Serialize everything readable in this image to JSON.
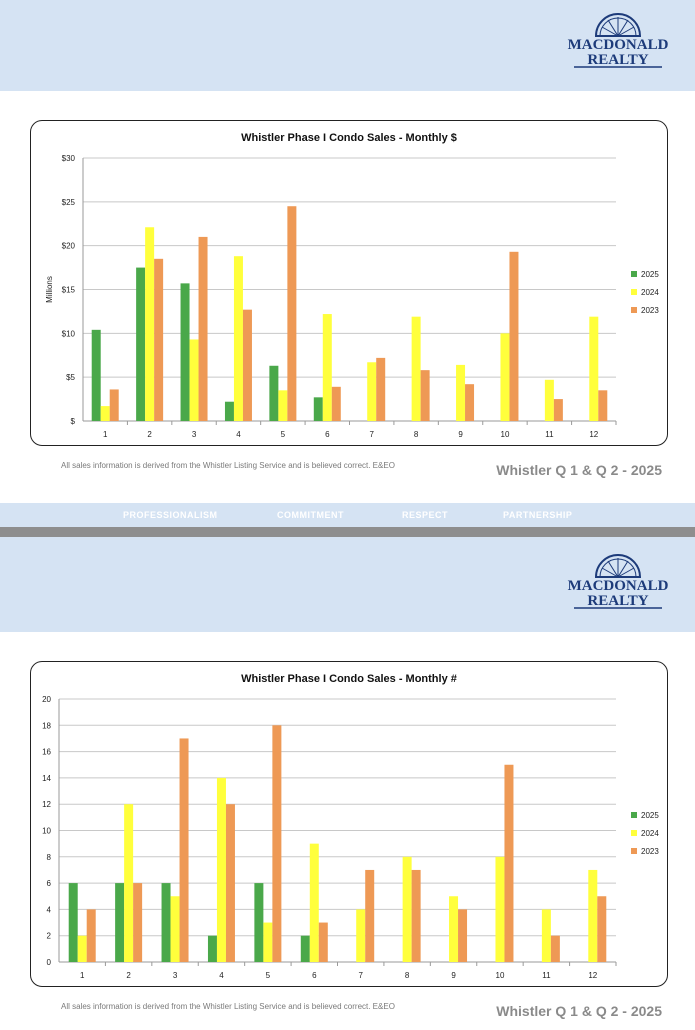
{
  "brand": {
    "line1": "MACDONALD",
    "line2": "REALTY",
    "color": "#1d3b7a"
  },
  "values": [
    "PROFESSIONALISM",
    "COMMITMENT",
    "RESPECT",
    "PARTNERSHIP"
  ],
  "footer": {
    "disclaimer": "All sales information is derived from the Whistler Listing Service and is believed correct. E&EO",
    "period": "Whistler Q 1 & Q 2 - 2025"
  },
  "colors": {
    "2025": "#4aa84a",
    "2024": "#ffff3c",
    "2023": "#ee9955",
    "band": "#d5e3f3"
  },
  "chart_data": [
    {
      "type": "bar",
      "title": "Whistler Phase I Condo Sales - Monthly $",
      "xlabel": "",
      "ylabel": "Millions",
      "ylim": [
        0,
        30
      ],
      "yticks": [
        0,
        5,
        10,
        15,
        20,
        25,
        30
      ],
      "ytick_labels": [
        "$",
        "$5",
        "$10",
        "$15",
        "$20",
        "$25",
        "$30"
      ],
      "categories": [
        "1",
        "2",
        "3",
        "4",
        "5",
        "6",
        "7",
        "8",
        "9",
        "10",
        "11",
        "12"
      ],
      "legend_position": "right",
      "grid": true,
      "series": [
        {
          "name": "2025",
          "color": "#4aa84a",
          "values": [
            10.4,
            17.5,
            15.7,
            2.2,
            6.3,
            2.7,
            null,
            null,
            null,
            null,
            null,
            null
          ]
        },
        {
          "name": "2024",
          "color": "#ffff3c",
          "values": [
            1.7,
            22.1,
            9.3,
            18.8,
            3.5,
            12.2,
            6.7,
            11.9,
            6.4,
            10.0,
            4.7,
            11.9
          ]
        },
        {
          "name": "2023",
          "color": "#ee9955",
          "values": [
            3.6,
            18.5,
            21.0,
            12.7,
            24.5,
            3.9,
            7.2,
            5.8,
            4.2,
            19.3,
            2.5,
            3.5
          ]
        }
      ]
    },
    {
      "type": "bar",
      "title": "Whistler Phase I Condo Sales - Monthly #",
      "xlabel": "",
      "ylabel": "",
      "ylim": [
        0,
        20
      ],
      "yticks": [
        0,
        2,
        4,
        6,
        8,
        10,
        12,
        14,
        16,
        18,
        20
      ],
      "ytick_labels": [
        "0",
        "2",
        "4",
        "6",
        "8",
        "10",
        "12",
        "14",
        "16",
        "18",
        "20"
      ],
      "categories": [
        "1",
        "2",
        "3",
        "4",
        "5",
        "6",
        "7",
        "8",
        "9",
        "10",
        "11",
        "12"
      ],
      "legend_position": "right",
      "grid": true,
      "series": [
        {
          "name": "2025",
          "color": "#4aa84a",
          "values": [
            6,
            6,
            6,
            2,
            6,
            2,
            null,
            null,
            null,
            null,
            null,
            null
          ]
        },
        {
          "name": "2024",
          "color": "#ffff3c",
          "values": [
            2,
            12,
            5,
            14,
            3,
            9,
            4,
            8,
            5,
            8,
            4,
            7
          ]
        },
        {
          "name": "2023",
          "color": "#ee9955",
          "values": [
            4,
            6,
            17,
            12,
            18,
            3,
            7,
            7,
            4,
            15,
            2,
            5
          ]
        }
      ]
    }
  ]
}
